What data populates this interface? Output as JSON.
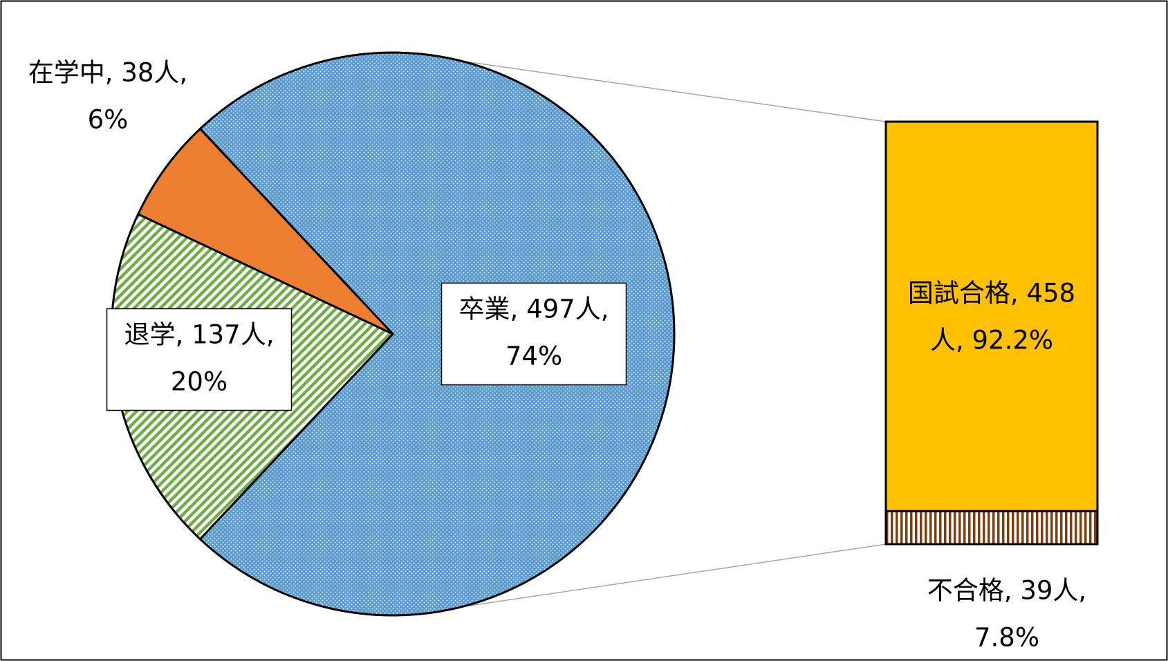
{
  "chart_data": [
    {
      "type": "pie",
      "values": [
        497,
        137,
        38
      ],
      "percents": [
        74,
        20,
        6
      ],
      "colors": [
        "#5b9bd5",
        "#70ad47",
        "#ed7d31"
      ],
      "patterns": [
        "dots",
        "diagonal",
        "solid"
      ],
      "labels": [
        [
          "卒業, 497人,",
          "74%"
        ],
        [
          "退学, 137人,",
          "20%"
        ],
        [
          "在学中, 38人,",
          "6%"
        ]
      ]
    },
    {
      "type": "stacked-bar",
      "values": [
        458,
        39
      ],
      "percents": [
        92.2,
        7.8
      ],
      "colors": [
        "#ffc000",
        "#843c0c"
      ],
      "patterns": [
        "solid",
        "vertical"
      ],
      "labels": [
        [
          "国試合格, 458",
          "人, 92.2%"
        ],
        [
          "不合格, 39人,",
          "7.8%"
        ]
      ]
    }
  ]
}
